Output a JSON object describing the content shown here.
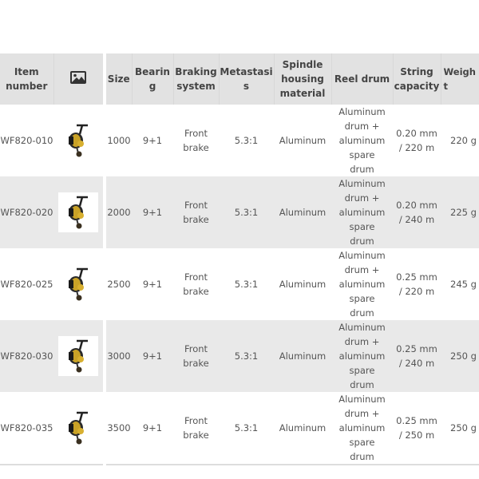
{
  "headers": [
    "Item number",
    "image-icon",
    "Size",
    "Bearing",
    "Braking system",
    "Metastasis",
    "Spindle housing material",
    "Reel drum",
    "String capacity",
    "Weight"
  ],
  "rows": [
    {
      "item": "WF820-010",
      "image": "spinning-reel-photo",
      "size": "1000",
      "bearing": "9+1",
      "braking": "Front brake",
      "metastasis": "5.3:1",
      "spindle": "Aluminum",
      "drum": "Aluminum drum + aluminum spare drum",
      "capacity": "0.20 mm / 220 m",
      "weight": "220 g"
    },
    {
      "item": "WF820-020",
      "image": "spinning-reel-photo",
      "size": "2000",
      "bearing": "9+1",
      "braking": "Front brake",
      "metastasis": "5.3:1",
      "spindle": "Aluminum",
      "drum": "Aluminum drum + aluminum spare drum",
      "capacity": "0.20 mm / 240 m",
      "weight": "225 g"
    },
    {
      "item": "WF820-025",
      "image": "spinning-reel-photo",
      "size": "2500",
      "bearing": "9+1",
      "braking": "Front brake",
      "metastasis": "5.3:1",
      "spindle": "Aluminum",
      "drum": "Aluminum drum + aluminum spare drum",
      "capacity": "0.25 mm / 220 m",
      "weight": "245 g"
    },
    {
      "item": "WF820-030",
      "image": "spinning-reel-photo",
      "size": "3000",
      "bearing": "9+1",
      "braking": "Front brake",
      "metastasis": "5.3:1",
      "spindle": "Aluminum",
      "drum": "Aluminum drum + aluminum spare drum",
      "capacity": "0.25 mm / 240 m",
      "weight": "250 g"
    },
    {
      "item": "WF820-035",
      "image": "spinning-reel-photo",
      "size": "3500",
      "bearing": "9+1",
      "braking": "Front brake",
      "metastasis": "5.3:1",
      "spindle": "Aluminum",
      "drum": "Aluminum drum + aluminum spare drum",
      "capacity": "0.25 mm / 250 m",
      "weight": "250 g"
    }
  ]
}
